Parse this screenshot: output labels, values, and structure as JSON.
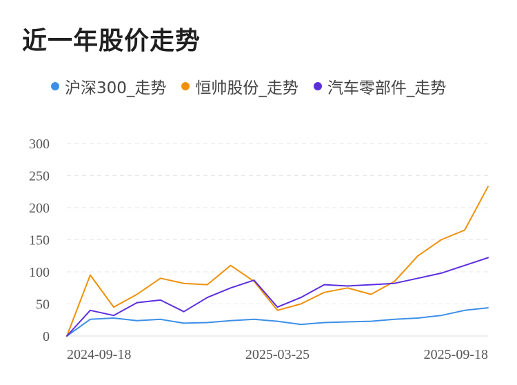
{
  "title": "近一年股价走势",
  "colors": {
    "hs300": "#3c8fe8",
    "hengshuai": "#f0900a",
    "auto_parts": "#5b2ee0"
  },
  "legend": [
    {
      "label": "沪深300_走势",
      "color": "#3c8fe8"
    },
    {
      "label": "恒帅股份_走势",
      "color": "#f0900a"
    },
    {
      "label": "汽车零部件_走势",
      "color": "#5b2ee0"
    }
  ],
  "chart_data": {
    "type": "line",
    "title": "近一年股价走势",
    "xlabel": "",
    "ylabel": "",
    "ylim": [
      0,
      300
    ],
    "yticks": [
      "300",
      "250",
      "200",
      "150",
      "100",
      "50",
      "0"
    ],
    "xticks": [
      "2024-09-18",
      "2025-03-25",
      "2025-09-18"
    ],
    "grid": true,
    "legend_position": "top",
    "x": [
      "2024-09-18",
      "2024-10-08",
      "2024-10-30",
      "2024-11-20",
      "2024-12-11",
      "2025-01-02",
      "2025-01-23",
      "2025-02-14",
      "2025-03-07",
      "2025-03-25",
      "2025-04-07",
      "2025-04-28",
      "2025-05-20",
      "2025-06-11",
      "2025-07-02",
      "2025-07-23",
      "2025-08-13",
      "2025-09-03",
      "2025-09-18"
    ],
    "series": [
      {
        "name": "沪深300_走势",
        "color": "#3c8fe8",
        "values": [
          0,
          26,
          28,
          24,
          26,
          20,
          21,
          24,
          26,
          23,
          18,
          21,
          22,
          23,
          26,
          28,
          32,
          40,
          44
        ]
      },
      {
        "name": "恒帅股份_走势",
        "color": "#f0900a",
        "values": [
          0,
          95,
          45,
          65,
          90,
          82,
          80,
          110,
          85,
          40,
          50,
          68,
          75,
          65,
          85,
          125,
          150,
          165,
          233
        ]
      },
      {
        "name": "汽车零部件_走势",
        "color": "#5b2ee0",
        "values": [
          0,
          40,
          32,
          52,
          56,
          38,
          60,
          75,
          87,
          45,
          60,
          80,
          78,
          80,
          82,
          90,
          98,
          110,
          122
        ]
      }
    ]
  }
}
